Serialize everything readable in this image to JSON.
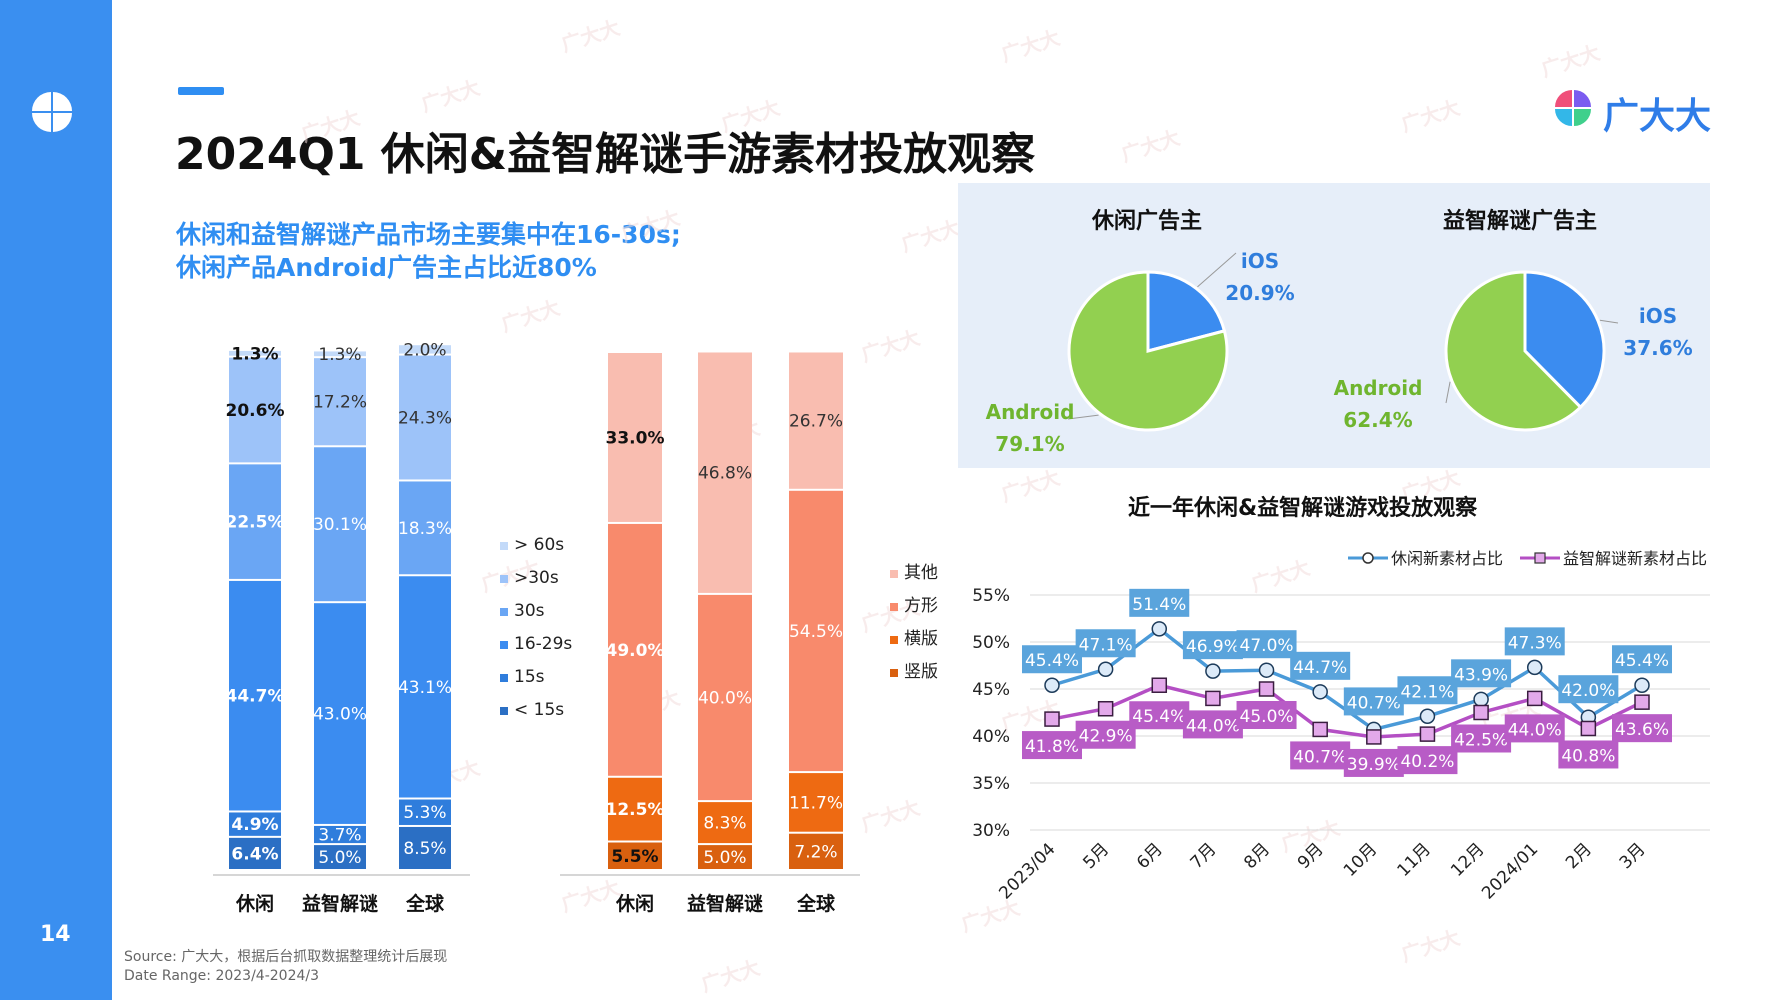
{
  "page": {
    "title": "2024Q1 休闲&益智解谜手游素材投放观察",
    "subtitle_line1": "休闲和益智解谜产品市场主要集中在16-30s;",
    "subtitle_line2": "休闲产品Android广告主占比近80%",
    "brand_name": "广大大",
    "page_number": "14",
    "source_line1": "Source: 广大大，根据后台抓取数据整理统计后展现",
    "source_line2": "Date Range: 2023/4-2024/3",
    "watermark": "广大大"
  },
  "chart_data": [
    {
      "type": "bar",
      "stacked": true,
      "percent": true,
      "categories": [
        "休闲",
        "益智解谜",
        "全球"
      ],
      "series": [
        {
          "name": "< 15s",
          "color": "#2b6fc4",
          "values": [
            6.4,
            5.0,
            8.5
          ],
          "labels": [
            "6.4%",
            "5.0%",
            "8.5%"
          ],
          "label_colors": [
            "#ffffff",
            "#ffffff",
            "#ffffff"
          ]
        },
        {
          "name": "15s",
          "color": "#2f7ddc",
          "values": [
            4.9,
            3.7,
            5.3
          ],
          "labels": [
            "4.9%",
            "3.7%",
            "5.3%"
          ],
          "label_colors": [
            "#ffffff",
            "#ffffff",
            "#ffffff"
          ]
        },
        {
          "name": "16-29s",
          "color": "#3b8cf0",
          "values": [
            44.7,
            43.0,
            43.1
          ],
          "labels": [
            "44.7%",
            "43.0%",
            "43.1%"
          ],
          "label_colors": [
            "#ffffff",
            "#ffffff",
            "#ffffff"
          ]
        },
        {
          "name": "30s",
          "color": "#6aa6f4",
          "values": [
            22.5,
            30.1,
            18.3
          ],
          "labels": [
            "22.5%",
            "30.1%",
            "18.3%"
          ],
          "label_colors": [
            "#ffffff",
            "#ffffff",
            "#ffffff"
          ]
        },
        {
          "name": ">30s",
          "color": "#9dc3f9",
          "values": [
            20.6,
            17.2,
            24.3
          ],
          "labels": [
            "20.6%",
            "17.2%",
            "24.3%"
          ],
          "label_colors": [
            "#111111",
            "#333333",
            "#333333"
          ]
        },
        {
          "name": "> 60s",
          "color": "#c3daf9",
          "values": [
            1.3,
            1.3,
            2.0
          ],
          "labels": [
            "1.3%",
            "1.3%",
            "2.0%"
          ],
          "label_colors": [
            "#111111",
            "#333333",
            "#333333"
          ]
        }
      ],
      "legend_position": "right",
      "legend_order": [
        "> 60s",
        ">30s",
        "30s",
        "16-29s",
        "15s",
        "< 15s"
      ]
    },
    {
      "type": "bar",
      "stacked": true,
      "percent": true,
      "categories": [
        "休闲",
        "益智解谜",
        "全球"
      ],
      "series": [
        {
          "name": "竖版",
          "color": "#d9600f",
          "values": [
            5.5,
            5.0,
            7.2
          ],
          "labels": [
            "5.5%",
            "5.0%",
            "7.2%"
          ],
          "label_colors": [
            "#111111",
            "#ffffff",
            "#ffffff"
          ]
        },
        {
          "name": "横版",
          "color": "#ee6a12",
          "values": [
            12.5,
            8.3,
            11.7
          ],
          "labels": [
            "12.5%",
            "8.3%",
            "11.7%"
          ],
          "label_colors": [
            "#ffffff",
            "#ffffff",
            "#ffffff"
          ]
        },
        {
          "name": "方形",
          "color": "#f88a6c",
          "values": [
            49.0,
            40.0,
            54.5
          ],
          "labels": [
            "49.0%",
            "40.0%",
            "54.5%"
          ],
          "label_colors": [
            "#ffffff",
            "#ffffff",
            "#ffffff"
          ]
        },
        {
          "name": "其他",
          "color": "#f9bdb0",
          "values": [
            33.0,
            46.8,
            26.7
          ],
          "labels": [
            "33.0%",
            "46.8%",
            "26.7%"
          ],
          "label_colors": [
            "#111111",
            "#333333",
            "#333333"
          ]
        }
      ],
      "legend_position": "right",
      "legend_order": [
        "其他",
        "方形",
        "横版",
        "竖版"
      ]
    },
    {
      "type": "pie",
      "title": "休闲广告主",
      "slices": [
        {
          "label": "iOS",
          "value": 20.9,
          "value_label": "20.9%",
          "color": "#3b8cf0",
          "text_color": "#2f7ddc"
        },
        {
          "label": "Android",
          "value": 79.1,
          "value_label": "79.1%",
          "color": "#92d050",
          "text_color": "#6fb52f"
        }
      ]
    },
    {
      "type": "pie",
      "title": "益智解谜广告主",
      "slices": [
        {
          "label": "iOS",
          "value": 37.6,
          "value_label": "37.6%",
          "color": "#3b8cf0",
          "text_color": "#2f7ddc"
        },
        {
          "label": "Android",
          "value": 62.4,
          "value_label": "62.4%",
          "color": "#92d050",
          "text_color": "#6fb52f"
        }
      ]
    },
    {
      "type": "line",
      "title": "近一年休闲&益智解谜游戏投放观察",
      "x": [
        "2023/04",
        "5月",
        "6月",
        "7月",
        "8月",
        "9月",
        "10月",
        "11月",
        "12月",
        "2024/01",
        "2月",
        "3月"
      ],
      "ylim": [
        30,
        55
      ],
      "yticks": [
        "30%",
        "35%",
        "40%",
        "45%",
        "50%",
        "55%"
      ],
      "legend_position": "top-right",
      "series": [
        {
          "name": "休闲新素材占比",
          "color": "#4a9ad8",
          "label_bg": "#5aa4dc",
          "marker": "circle",
          "values": [
            45.4,
            47.1,
            51.4,
            46.9,
            47.0,
            44.7,
            40.7,
            42.1,
            43.9,
            47.3,
            42.0,
            45.4
          ],
          "labels": [
            "45.4%",
            "47.1%",
            "51.4%",
            "46.9%",
            "47.0%",
            "44.7%",
            "40.7%",
            "42.1%",
            "43.9%",
            "47.3%",
            "42.0%",
            "45.4%"
          ]
        },
        {
          "name": "益智解谜新素材占比",
          "color": "#b44fc4",
          "label_bg": "#b85cc6",
          "marker": "square",
          "values": [
            41.8,
            42.9,
            45.4,
            44.0,
            45.0,
            40.7,
            39.9,
            40.2,
            42.5,
            44.0,
            40.8,
            43.6
          ],
          "labels": [
            "41.8%",
            "42.9%",
            "45.4%",
            "44.0%",
            "45.0%",
            "40.7%",
            "39.9%",
            "40.2%",
            "42.5%",
            "44.0%",
            "40.8%",
            "43.6%"
          ]
        }
      ]
    }
  ]
}
